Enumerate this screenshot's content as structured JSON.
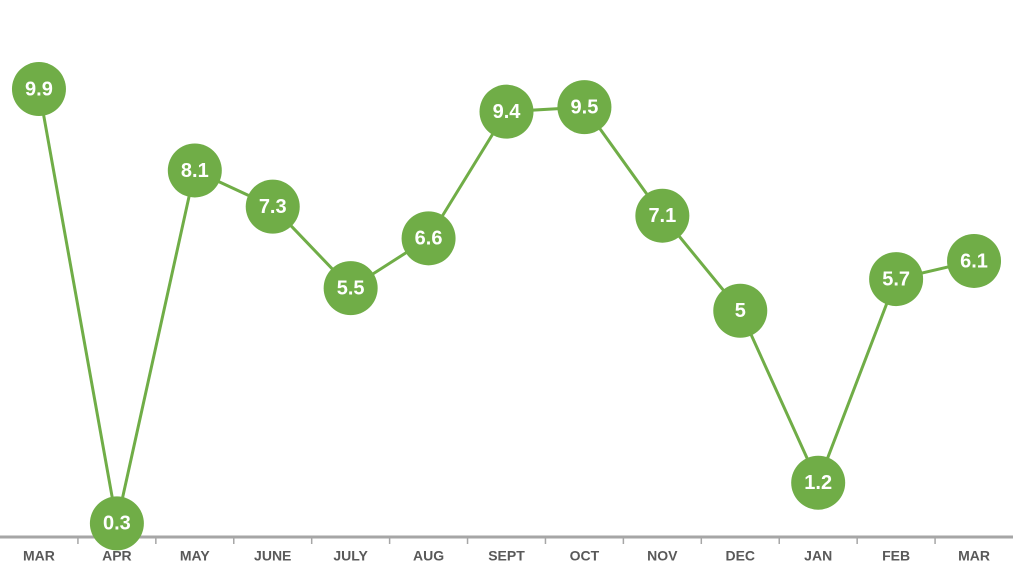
{
  "chart_data": {
    "type": "line",
    "categories": [
      "MAR",
      "APR",
      "MAY",
      "JUNE",
      "JULY",
      "AUG",
      "SEPT",
      "OCT",
      "NOV",
      "DEC",
      "JAN",
      "FEB",
      "MAR"
    ],
    "values": [
      9.9,
      0.3,
      8.1,
      7.3,
      5.5,
      6.6,
      9.4,
      9.5,
      7.1,
      5,
      1.2,
      5.7,
      6.1
    ],
    "color": "#70ad47",
    "ylim": [
      0,
      12
    ]
  }
}
